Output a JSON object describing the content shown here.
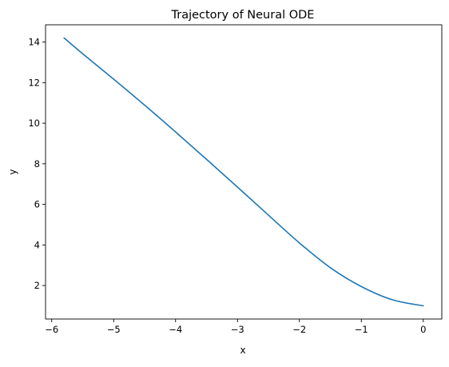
{
  "chart_data": {
    "type": "line",
    "title": "Trajectory of Neural ODE",
    "xlabel": "x",
    "ylabel": "y",
    "xlim": [
      -6.1,
      0.3
    ],
    "ylim": [
      0.35,
      14.85
    ],
    "x_ticks": [
      -6,
      -5,
      -4,
      -3,
      -2,
      -1,
      0
    ],
    "x_tick_labels": [
      "−6",
      "−5",
      "−4",
      "−3",
      "−2",
      "−1",
      "0"
    ],
    "y_ticks": [
      2,
      4,
      6,
      8,
      10,
      12,
      14
    ],
    "y_tick_labels": [
      "2",
      "4",
      "6",
      "8",
      "10",
      "12",
      "14"
    ],
    "grid": false,
    "series": [
      {
        "color": "#1f77b4",
        "x": [
          -5.8,
          -5.5,
          -5.0,
          -4.5,
          -4.0,
          -3.5,
          -3.0,
          -2.5,
          -2.0,
          -1.5,
          -1.0,
          -0.5,
          0.0
        ],
        "y": [
          14.2,
          13.42,
          12.17,
          10.89,
          9.57,
          8.22,
          6.85,
          5.47,
          4.1,
          2.88,
          1.95,
          1.3,
          1.0
        ]
      }
    ]
  }
}
